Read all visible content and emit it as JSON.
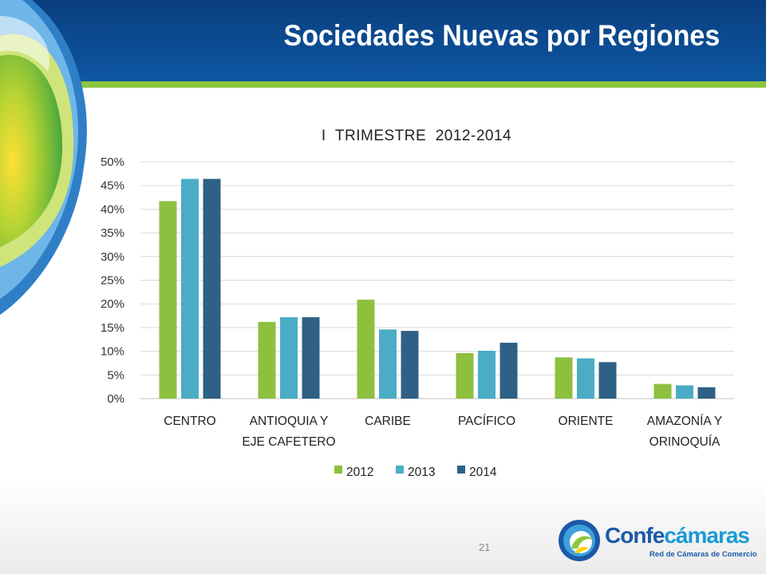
{
  "slide": {
    "title": "Sociedades Nuevas por Regiones",
    "page_number": "21",
    "colors": {
      "header": "#0e56a2",
      "accent_line": "#8ec63f"
    }
  },
  "logo": {
    "name_part1": "Confe",
    "name_part2": "cámaras",
    "subtitle": "Red de Cámaras de Comercio"
  },
  "chart_data": {
    "type": "bar",
    "title": "I  TRIMESTRE  2012-2014",
    "categories": [
      [
        "CENTRO"
      ],
      [
        "ANTIOQUIA Y",
        "EJE CAFETERO"
      ],
      [
        "CARIBE"
      ],
      [
        "PACÍFICO"
      ],
      [
        "ORIENTE"
      ],
      [
        "AMAZONÍA Y",
        "ORINOQUÍA"
      ]
    ],
    "series": [
      {
        "name": "2012",
        "color": "#8dc03f",
        "values": [
          41.7,
          16.2,
          20.9,
          9.6,
          8.7,
          3.1
        ]
      },
      {
        "name": "2013",
        "color": "#4bacc6",
        "values": [
          46.4,
          17.2,
          14.6,
          10.1,
          8.5,
          2.8
        ]
      },
      {
        "name": "2014",
        "color": "#2e6185",
        "values": [
          46.4,
          17.2,
          14.3,
          11.8,
          7.7,
          2.4
        ]
      }
    ],
    "yticks": [
      "0%",
      "5%",
      "10%",
      "15%",
      "20%",
      "25%",
      "30%",
      "35%",
      "40%",
      "45%",
      "50%"
    ],
    "ylim": [
      0,
      50
    ],
    "grid": true,
    "legend_position": "bottom"
  }
}
